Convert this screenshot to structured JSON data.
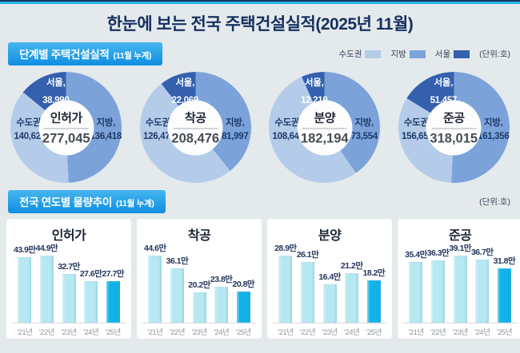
{
  "page": {
    "title": "한눈에 보는 전국 주택건설실적(2025년 11월)"
  },
  "colors": {
    "capital": "#b4cce9",
    "local": "#7ba3da",
    "seoul": "#3460ae",
    "bar": "#b6e8f1",
    "bar_highlight": "#10b2e8",
    "accent_cyan": "#29b6e9",
    "navy": "#14305e"
  },
  "section1": {
    "badge_title": "단계별 주택건설실적",
    "badge_subtitle": "(11월 누계)",
    "unit_label": "(단위:호)",
    "legend": [
      {
        "label": "수도권"
      },
      {
        "label": "지방"
      },
      {
        "label": "서울"
      }
    ]
  },
  "section2": {
    "badge_title": "전국 연도별 물량추이",
    "badge_subtitle": "(11월 누계)",
    "unit_label": "(단위:호)"
  },
  "chart_data": {
    "donuts": [
      {
        "type": "pie",
        "title": "인허가",
        "total": 277045,
        "total_label": "277,045",
        "capital": {
          "label": "수도권,",
          "value": 140627,
          "value_label": "140,627"
        },
        "local": {
          "label": "지방,",
          "value": 136418,
          "value_label": "136,418"
        },
        "seoul": {
          "label": "서울,",
          "value": 38990,
          "value_label": "38,990"
        }
      },
      {
        "type": "pie",
        "title": "착공",
        "total": 208476,
        "total_label": "208,476",
        "capital": {
          "label": "수도권,",
          "value": 126479,
          "value_label": "126,479"
        },
        "local": {
          "label": "지방,",
          "value": 81997,
          "value_label": "81,997"
        },
        "seoul": {
          "label": "서울,",
          "value": 22069,
          "value_label": "22,069"
        }
      },
      {
        "type": "pie",
        "title": "분양",
        "total": 182194,
        "total_label": "182,194",
        "capital": {
          "label": "수도권,",
          "value": 108640,
          "value_label": "108,640"
        },
        "local": {
          "label": "지방,",
          "value": 73554,
          "value_label": "73,554"
        },
        "seoul": {
          "label": "서울,",
          "value": 12219,
          "value_label": "12,219"
        }
      },
      {
        "type": "pie",
        "title": "준공",
        "total": 318015,
        "total_label": "318,015",
        "capital": {
          "label": "수도권,",
          "value": 156659,
          "value_label": "156,659"
        },
        "local": {
          "label": "지방,",
          "value": 161356,
          "value_label": "161,356"
        },
        "seoul": {
          "label": "서울,",
          "value": 51457,
          "value_label": "51,457"
        }
      }
    ],
    "bars": [
      {
        "type": "bar",
        "title": "인허가",
        "unit": "만",
        "highlight_index": 4,
        "categories": [
          "'21년",
          "'22년",
          "'23년",
          "'24년",
          "'25년"
        ],
        "values": [
          43.9,
          44.9,
          32.7,
          27.6,
          27.7
        ],
        "value_labels": [
          "43.9만",
          "44.9만",
          "32.7만",
          "27.6만",
          "27.7만"
        ]
      },
      {
        "type": "bar",
        "title": "착공",
        "unit": "만",
        "highlight_index": 4,
        "categories": [
          "'21년",
          "'22년",
          "'23년",
          "'24년",
          "'25년"
        ],
        "values": [
          44.6,
          36.1,
          20.2,
          23.8,
          20.8
        ],
        "value_labels": [
          "44.6만",
          "36.1만",
          "20.2만",
          "23.8만",
          "20.8만"
        ]
      },
      {
        "type": "bar",
        "title": "분양",
        "unit": "만",
        "highlight_index": 4,
        "categories": [
          "'21년",
          "'22년",
          "'23년",
          "'24년",
          "'25년"
        ],
        "values": [
          28.9,
          26.1,
          16.4,
          21.2,
          18.2
        ],
        "value_labels": [
          "28.9만",
          "26.1만",
          "16.4만",
          "21.2만",
          "18.2만"
        ]
      },
      {
        "type": "bar",
        "title": "준공",
        "unit": "만",
        "highlight_index": 4,
        "categories": [
          "'21년",
          "'22년",
          "'23년",
          "'24년",
          "'25년"
        ],
        "values": [
          35.4,
          36.3,
          39.1,
          36.7,
          31.8
        ],
        "value_labels": [
          "35.4만",
          "36.3만",
          "39.1만",
          "36.7만",
          "31.8만"
        ]
      }
    ]
  }
}
